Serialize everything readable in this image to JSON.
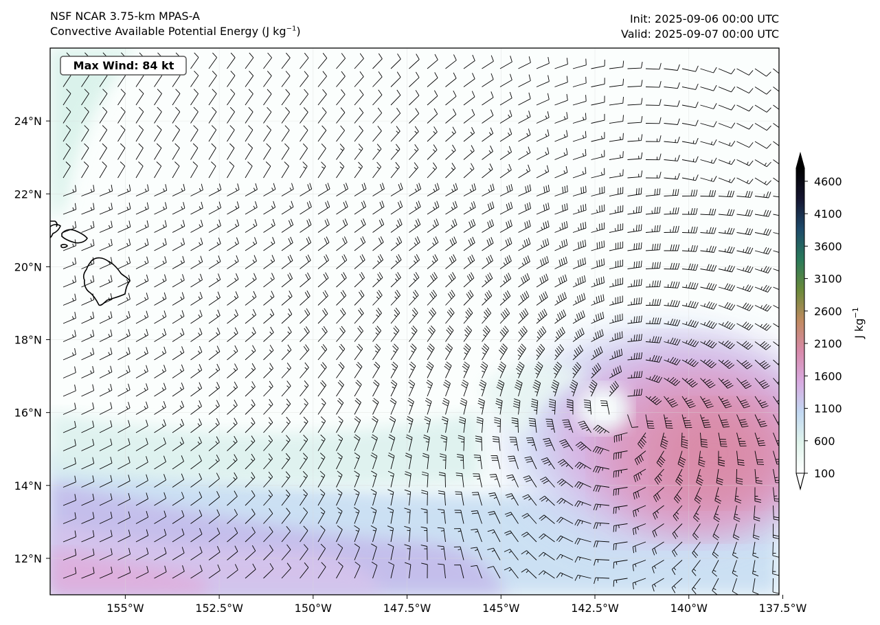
{
  "header": {
    "model_name": "NSF NCAR 3.75-km MPAS-A",
    "field_name": "Convective Available Potential Energy (J kg",
    "field_unit_sup": "−1",
    "field_unit_close": ")",
    "init": "Init: 2025-09-06 00:00 UTC",
    "valid": "Valid: 2025-09-07 00:00 UTC"
  },
  "annotation": {
    "max_wind": "Max Wind: 84 kt"
  },
  "map": {
    "lon_range": [
      -157.0,
      -137.6
    ],
    "lat_range": [
      11.0,
      26.0
    ],
    "lon_ticks": [
      {
        "value": -155.0,
        "label": "155°W"
      },
      {
        "value": -152.5,
        "label": "152.5°W"
      },
      {
        "value": -150.0,
        "label": "150°W"
      },
      {
        "value": -147.5,
        "label": "147.5°W"
      },
      {
        "value": -145.0,
        "label": "145°W"
      },
      {
        "value": -142.5,
        "label": "142.5°W"
      },
      {
        "value": -140.0,
        "label": "140°W"
      },
      {
        "value": -137.5,
        "label": "137.5°W"
      }
    ],
    "lat_ticks": [
      {
        "value": 12,
        "label": "12°N"
      },
      {
        "value": 14,
        "label": "14°N"
      },
      {
        "value": 16,
        "label": "16°N"
      },
      {
        "value": 18,
        "label": "18°N"
      },
      {
        "value": 20,
        "label": "20°N"
      },
      {
        "value": 22,
        "label": "22°N"
      },
      {
        "value": 24,
        "label": "24°N"
      }
    ],
    "cyclone_center": {
      "lon": -141.7,
      "lat": 16.1
    },
    "coastline": "Hawaiian Islands",
    "overlay": "wind barbs"
  },
  "colorbar": {
    "label": "J kg",
    "label_sup": "−1",
    "min": 100,
    "max": 4800,
    "ticks": [
      100,
      600,
      1100,
      1600,
      2100,
      2600,
      3100,
      3600,
      4100,
      4600
    ],
    "colors": [
      "#ffffff",
      "#e0f4ec",
      "#c2d8f2",
      "#d8aae0",
      "#d88aaa",
      "#c08a60",
      "#6b8a3a",
      "#2a7a5a",
      "#1e4a6a",
      "#151530",
      "#000000"
    ]
  }
}
